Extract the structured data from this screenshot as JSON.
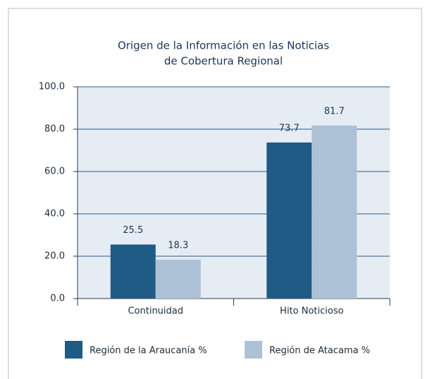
{
  "chart_data": {
    "type": "bar",
    "title": [
      "Origen de la Información en las Noticias",
      "de Cobertura Regional"
    ],
    "categories": [
      "Continuidad",
      "Hito Noticioso"
    ],
    "series": [
      {
        "name": "Región de la Araucanía %",
        "color": "#1f5b85",
        "values": [
          25.5,
          73.7
        ]
      },
      {
        "name": "Región de Atacama %",
        "color": "#adc1d6",
        "values": [
          18.3,
          81.7
        ]
      }
    ],
    "ylim": [
      0,
      100
    ],
    "yticks": [
      {
        "value": 0,
        "label": "0.0"
      },
      {
        "value": 20,
        "label": "20.0"
      },
      {
        "value": 40,
        "label": "40.0"
      },
      {
        "value": 60,
        "label": "60.0"
      },
      {
        "value": 80,
        "label": "80.0"
      },
      {
        "value": 100,
        "label": "100.0"
      }
    ],
    "grid": true
  }
}
